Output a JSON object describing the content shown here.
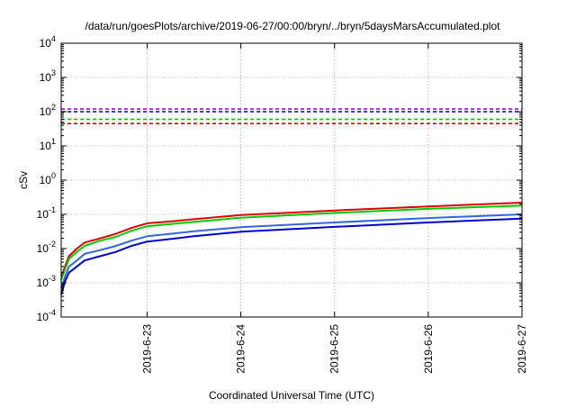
{
  "chart_data": {
    "type": "line",
    "title": "/data/run/goesPlots/archive/2019-06-27/00:00/bryn/../bryn/5daysMarsAccumulated.plot",
    "xlabel": "Coordinated Universal Time (UTC)",
    "ylabel": "cSv",
    "yscale": "log",
    "ylim": [
      0.0001,
      10000
    ],
    "xlim": [
      "2019-06-22 02:00",
      "2019-06-27 00:00"
    ],
    "grid": true,
    "y_ticks": [
      {
        "value": 0.0001,
        "base": "10",
        "exp": "-4"
      },
      {
        "value": 0.001,
        "base": "10",
        "exp": "-3"
      },
      {
        "value": 0.01,
        "base": "10",
        "exp": "-2"
      },
      {
        "value": 0.1,
        "base": "10",
        "exp": "-1"
      },
      {
        "value": 1,
        "base": "10",
        "exp": "0"
      },
      {
        "value": 10,
        "base": "10",
        "exp": "1"
      },
      {
        "value": 100,
        "base": "10",
        "exp": "2"
      },
      {
        "value": 1000,
        "base": "10",
        "exp": "3"
      },
      {
        "value": 10000,
        "base": "10",
        "exp": "4"
      }
    ],
    "x_ticks": [
      "2019-6-23",
      "2019-6-24",
      "2019-6-25",
      "2019-6-26",
      "2019-6-27"
    ],
    "series": [
      {
        "color": "#dd0000",
        "style": "solid",
        "x": [
          "2019-06-22 02:00",
          "2019-06-22 03:00",
          "2019-06-22 04:00",
          "2019-06-22 06:00",
          "2019-06-22 08:00",
          "2019-06-22 12:00",
          "2019-06-22 16:00",
          "2019-06-22 20:00",
          "2019-06-23 00:00",
          "2019-06-23 06:00",
          "2019-06-23 12:00",
          "2019-06-24 00:00",
          "2019-06-25 00:00",
          "2019-06-26 00:00",
          "2019-06-27 00:00"
        ],
        "values": [
          0.0015,
          0.003,
          0.006,
          0.01,
          0.015,
          0.02,
          0.027,
          0.04,
          0.055,
          0.062,
          0.072,
          0.095,
          0.13,
          0.17,
          0.22
        ]
      },
      {
        "color": "#00cc00",
        "style": "solid",
        "x": [
          "2019-06-22 02:00",
          "2019-06-22 03:00",
          "2019-06-22 04:00",
          "2019-06-22 06:00",
          "2019-06-22 08:00",
          "2019-06-22 12:00",
          "2019-06-22 16:00",
          "2019-06-22 20:00",
          "2019-06-23 00:00",
          "2019-06-23 06:00",
          "2019-06-23 12:00",
          "2019-06-24 00:00",
          "2019-06-25 00:00",
          "2019-06-26 00:00",
          "2019-06-27 00:00"
        ],
        "values": [
          0.0012,
          0.0025,
          0.005,
          0.008,
          0.012,
          0.017,
          0.022,
          0.033,
          0.045,
          0.052,
          0.06,
          0.08,
          0.11,
          0.145,
          0.18
        ]
      },
      {
        "color": "#3366dd",
        "style": "solid",
        "x": [
          "2019-06-22 02:00",
          "2019-06-22 03:00",
          "2019-06-22 04:00",
          "2019-06-22 06:00",
          "2019-06-22 08:00",
          "2019-06-22 12:00",
          "2019-06-22 16:00",
          "2019-06-22 20:00",
          "2019-06-23 00:00",
          "2019-06-23 06:00",
          "2019-06-23 12:00",
          "2019-06-24 00:00",
          "2019-06-25 00:00",
          "2019-06-26 00:00",
          "2019-06-27 00:00"
        ],
        "values": [
          0.0007,
          0.0015,
          0.003,
          0.0045,
          0.007,
          0.009,
          0.012,
          0.017,
          0.023,
          0.027,
          0.032,
          0.042,
          0.058,
          0.078,
          0.1
        ]
      },
      {
        "color": "#0000cc",
        "style": "solid",
        "x": [
          "2019-06-22 02:00",
          "2019-06-22 03:00",
          "2019-06-22 04:00",
          "2019-06-22 06:00",
          "2019-06-22 08:00",
          "2019-06-22 12:00",
          "2019-06-22 16:00",
          "2019-06-22 20:00",
          "2019-06-23 00:00",
          "2019-06-23 06:00",
          "2019-06-23 12:00",
          "2019-06-24 00:00",
          "2019-06-25 00:00",
          "2019-06-26 00:00",
          "2019-06-27 00:00"
        ],
        "values": [
          0.00045,
          0.0011,
          0.002,
          0.003,
          0.0045,
          0.006,
          0.008,
          0.012,
          0.016,
          0.019,
          0.023,
          0.031,
          0.043,
          0.058,
          0.075
        ]
      },
      {
        "color": "#8800cc",
        "style": "dashed",
        "x": [
          "2019-06-22 02:00",
          "2019-06-27 00:00"
        ],
        "values": [
          120,
          120
        ]
      },
      {
        "color": "#0000cc",
        "style": "dashed",
        "x": [
          "2019-06-22 02:00",
          "2019-06-27 00:00"
        ],
        "values": [
          100,
          100
        ]
      },
      {
        "color": "#00cc00",
        "style": "dashed",
        "x": [
          "2019-06-22 02:00",
          "2019-06-27 00:00"
        ],
        "values": [
          60,
          60
        ]
      },
      {
        "color": "#dd0000",
        "style": "dashed",
        "x": [
          "2019-06-22 02:00",
          "2019-06-27 00:00"
        ],
        "values": [
          45,
          45
        ]
      }
    ]
  }
}
